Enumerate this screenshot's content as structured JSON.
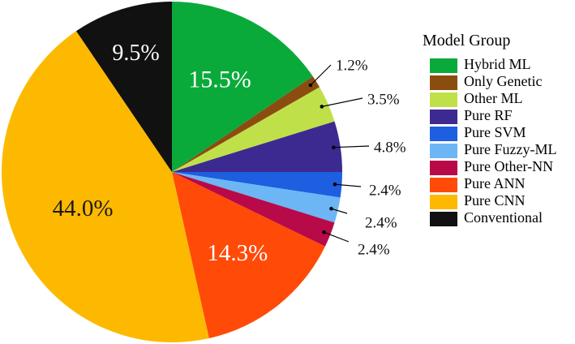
{
  "chart_data": {
    "type": "pie",
    "legend_title": "Model Group",
    "legend_position": "right",
    "start_angle_deg": 0,
    "direction": "clockwise",
    "slices": [
      {
        "name": "Hybrid ML",
        "value": 15.5,
        "label": "15.5%",
        "color": "#0aaa3a",
        "label_inside": true,
        "label_color": "#ffffff"
      },
      {
        "name": "Only Genetic",
        "value": 1.2,
        "label": "1.2%",
        "color": "#8b4d0f",
        "label_inside": false
      },
      {
        "name": "Other ML",
        "value": 3.5,
        "label": "3.5%",
        "color": "#c0e04a",
        "label_inside": false
      },
      {
        "name": "Pure RF",
        "value": 4.8,
        "label": "4.8%",
        "color": "#3d2a90",
        "label_inside": false
      },
      {
        "name": "Pure SVM",
        "value": 2.4,
        "label": "2.4%",
        "color": "#1d5fe0",
        "label_inside": false
      },
      {
        "name": "Pure Fuzzy-ML",
        "value": 2.4,
        "label": "2.4%",
        "color": "#6cb6f5",
        "label_inside": false
      },
      {
        "name": "Pure Other-NN",
        "value": 2.4,
        "label": "2.4%",
        "color": "#b80a48",
        "label_inside": false
      },
      {
        "name": "Pure ANN",
        "value": 14.3,
        "label": "14.3%",
        "color": "#ff4a08",
        "label_inside": true,
        "label_color": "#ffffff"
      },
      {
        "name": "Pure CNN",
        "value": 44.0,
        "label": "44.0%",
        "color": "#fdb900",
        "label_inside": true,
        "label_color": "#1a1a1a"
      },
      {
        "name": "Conventional",
        "value": 9.5,
        "label": "9.5%",
        "color": "#111111",
        "label_inside": true,
        "label_color": "#ffffff"
      }
    ]
  }
}
